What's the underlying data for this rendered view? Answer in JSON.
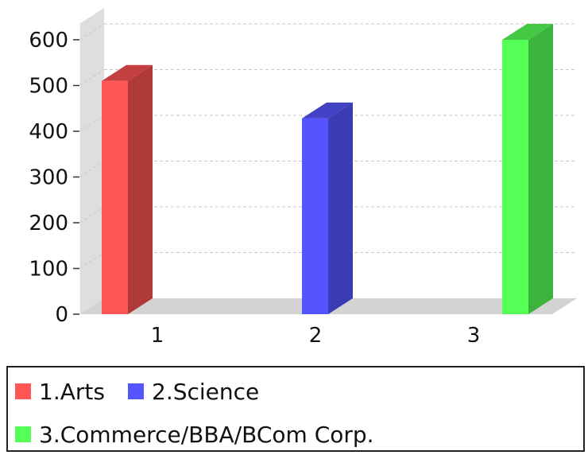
{
  "chart_data": {
    "type": "bar",
    "style": "3d",
    "categories": [
      "1",
      "2",
      "3"
    ],
    "values": [
      510,
      428,
      600
    ],
    "ylim": [
      0,
      600
    ],
    "yticks": [
      0,
      100,
      200,
      300,
      400,
      500,
      600
    ],
    "grid": true,
    "legend_position": "bottom",
    "title": "",
    "xlabel": "",
    "ylabel": "",
    "legend": [
      {
        "label": "1.Arts",
        "color": "#ff5555"
      },
      {
        "label": "2.Science",
        "color": "#5555ff"
      },
      {
        "label": "3.Commerce/BBA/BCom Corp.",
        "color": "#55ff55"
      }
    ],
    "colors": {
      "front": [
        "#ff5555",
        "#5555ff",
        "#55ff55"
      ],
      "side": [
        "#b03a3a",
        "#3b3bb3",
        "#3cb33c"
      ],
      "top": [
        "#c43f3f",
        "#4242c4",
        "#45c945"
      ],
      "wall": "#dedede",
      "floor": "#d3d3d3",
      "gridline": "#c8c8c8"
    }
  }
}
